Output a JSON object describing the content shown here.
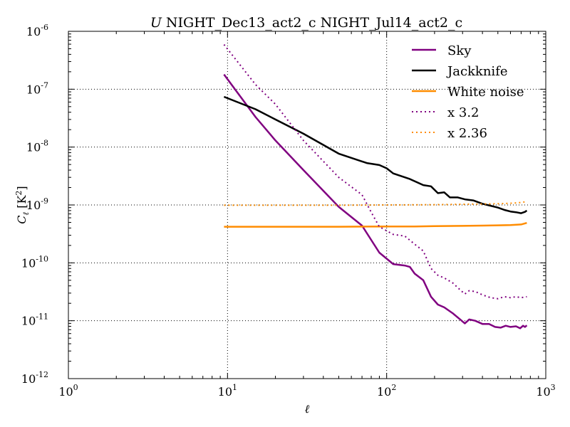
{
  "chart_data": {
    "type": "line",
    "title_prefix": "U",
    "title": "NIGHT_Dec13_act2_c NIGHT_Jul14_act2_c",
    "xlabel": "ℓ",
    "ylabel": "Cℓ [K²]",
    "xscale": "log",
    "yscale": "log",
    "xlim": [
      1,
      1000
    ],
    "ylim": [
      1e-12,
      1e-06
    ],
    "x_ticks": [
      {
        "value": 1,
        "base": "10",
        "exp": "0"
      },
      {
        "value": 10,
        "base": "10",
        "exp": "1"
      },
      {
        "value": 100,
        "base": "10",
        "exp": "2"
      },
      {
        "value": 1000,
        "base": "10",
        "exp": "3"
      }
    ],
    "y_ticks": [
      {
        "value": 1e-12,
        "base": "10",
        "exp": "-12"
      },
      {
        "value": 1e-11,
        "base": "10",
        "exp": "-11"
      },
      {
        "value": 1e-10,
        "base": "10",
        "exp": "-10"
      },
      {
        "value": 1e-09,
        "base": "10",
        "exp": "-9"
      },
      {
        "value": 1e-08,
        "base": "10",
        "exp": "-8"
      },
      {
        "value": 1e-07,
        "base": "10",
        "exp": "-7"
      },
      {
        "value": 1e-06,
        "base": "10",
        "exp": "-6"
      }
    ],
    "grid": true,
    "legend_position": "top-right",
    "series": [
      {
        "name": "Sky",
        "color": "#800080",
        "style": "solid",
        "points": [
          [
            9.5,
            1.8e-07
          ],
          [
            15,
            3.3e-08
          ],
          [
            20,
            1.3e-08
          ],
          [
            30,
            4e-09
          ],
          [
            50,
            9.3e-10
          ],
          [
            70,
            4.4e-10
          ],
          [
            90,
            1.5e-10
          ],
          [
            110,
            9.5e-11
          ],
          [
            130,
            9e-11
          ],
          [
            140,
            8.5e-11
          ],
          [
            150,
            6.5e-11
          ],
          [
            170,
            5e-11
          ],
          [
            190,
            2.6e-11
          ],
          [
            210,
            1.9e-11
          ],
          [
            230,
            1.7e-11
          ],
          [
            260,
            1.35e-11
          ],
          [
            290,
            1.05e-11
          ],
          [
            310,
            9e-12
          ],
          [
            330,
            1.05e-11
          ],
          [
            360,
            1e-11
          ],
          [
            400,
            8.8e-12
          ],
          [
            440,
            8.8e-12
          ],
          [
            480,
            7.8e-12
          ],
          [
            520,
            7.6e-12
          ],
          [
            560,
            8.2e-12
          ],
          [
            600,
            7.8e-12
          ],
          [
            650,
            8e-12
          ],
          [
            690,
            7.4e-12
          ],
          [
            720,
            8.2e-12
          ],
          [
            740,
            7.8e-12
          ],
          [
            760,
            8.3e-12
          ]
        ]
      },
      {
        "name": "Jackknife",
        "color": "#000000",
        "style": "solid",
        "points": [
          [
            9.5,
            7.4e-08
          ],
          [
            15,
            4.5e-08
          ],
          [
            20,
            3e-08
          ],
          [
            30,
            1.7e-08
          ],
          [
            50,
            7.7e-09
          ],
          [
            75,
            5.3e-09
          ],
          [
            90,
            4.9e-09
          ],
          [
            100,
            4.3e-09
          ],
          [
            110,
            3.5e-09
          ],
          [
            140,
            2.8e-09
          ],
          [
            170,
            2.2e-09
          ],
          [
            190,
            2.1e-09
          ],
          [
            210,
            1.6e-09
          ],
          [
            230,
            1.65e-09
          ],
          [
            250,
            1.35e-09
          ],
          [
            280,
            1.35e-09
          ],
          [
            310,
            1.25e-09
          ],
          [
            350,
            1.2e-09
          ],
          [
            400,
            1.05e-09
          ],
          [
            450,
            9.7e-10
          ],
          [
            500,
            9e-10
          ],
          [
            550,
            8.2e-10
          ],
          [
            600,
            7.7e-10
          ],
          [
            650,
            7.5e-10
          ],
          [
            700,
            7.2e-10
          ],
          [
            740,
            7.6e-10
          ],
          [
            760,
            8e-10
          ]
        ]
      },
      {
        "name": "White noise",
        "color": "#ff8c00",
        "style": "solid",
        "points": [
          [
            9.5,
            4.2e-10
          ],
          [
            50,
            4.2e-10
          ],
          [
            100,
            4.25e-10
          ],
          [
            150,
            4.25e-10
          ],
          [
            200,
            4.3e-10
          ],
          [
            300,
            4.35e-10
          ],
          [
            400,
            4.4e-10
          ],
          [
            500,
            4.45e-10
          ],
          [
            600,
            4.5e-10
          ],
          [
            700,
            4.6e-10
          ],
          [
            760,
            4.9e-10
          ]
        ]
      },
      {
        "name": "x 3.2",
        "color": "#800080",
        "style": "dotted",
        "points": [
          [
            9.5,
            5.9e-07
          ],
          [
            15,
            1.2e-07
          ],
          [
            20,
            5.5e-08
          ],
          [
            30,
            1.3e-08
          ],
          [
            50,
            3e-09
          ],
          [
            70,
            1.5e-09
          ],
          [
            80,
            7.5e-10
          ],
          [
            90,
            4.2e-10
          ],
          [
            110,
            3.1e-10
          ],
          [
            130,
            2.9e-10
          ],
          [
            150,
            2.1e-10
          ],
          [
            170,
            1.6e-10
          ],
          [
            190,
            8e-11
          ],
          [
            210,
            6.1e-11
          ],
          [
            230,
            5.5e-11
          ],
          [
            260,
            4.5e-11
          ],
          [
            290,
            3.4e-11
          ],
          [
            310,
            2.9e-11
          ],
          [
            330,
            3.3e-11
          ],
          [
            360,
            3.2e-11
          ],
          [
            400,
            2.8e-11
          ],
          [
            450,
            2.5e-11
          ],
          [
            500,
            2.4e-11
          ],
          [
            550,
            2.6e-11
          ],
          [
            600,
            2.5e-11
          ],
          [
            650,
            2.6e-11
          ],
          [
            700,
            2.5e-11
          ],
          [
            760,
            2.6e-11
          ]
        ]
      },
      {
        "name": "x 2.36",
        "color": "#ff8c00",
        "style": "dotted",
        "points": [
          [
            9.5,
            9.9e-10
          ],
          [
            50,
            9.9e-10
          ],
          [
            100,
            1e-09
          ],
          [
            200,
            1.01e-09
          ],
          [
            300,
            1.03e-09
          ],
          [
            400,
            1.04e-09
          ],
          [
            500,
            1.05e-09
          ],
          [
            600,
            1.07e-09
          ],
          [
            700,
            1.1e-09
          ],
          [
            760,
            1.15e-09
          ]
        ]
      }
    ]
  }
}
